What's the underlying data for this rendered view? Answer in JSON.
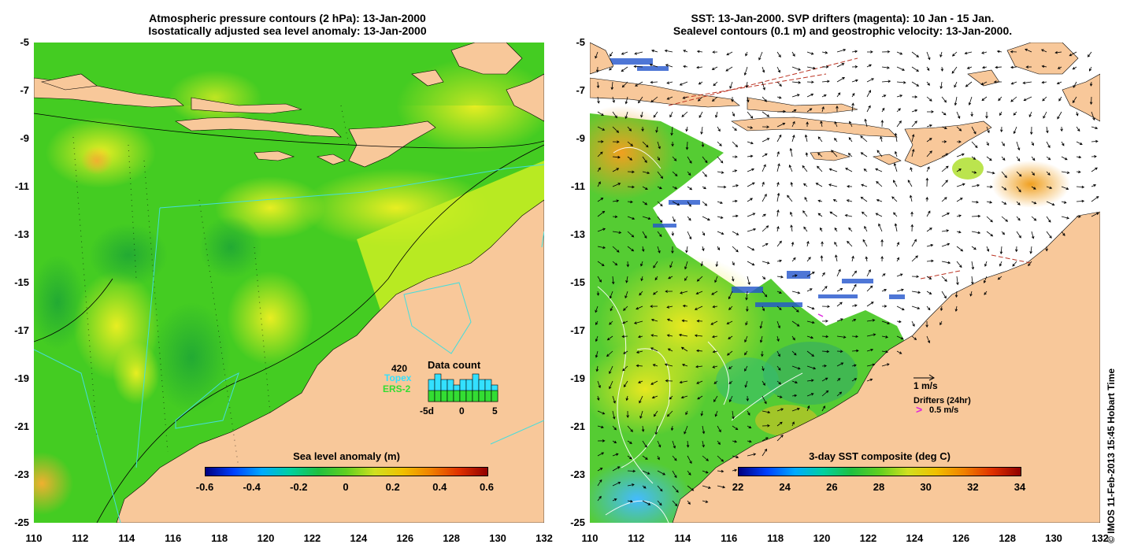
{
  "left_panel": {
    "title_line1": "Atmospheric pressure contours (2 hPa): 13-Jan-2000",
    "title_line2": "Isostatically adjusted sea level anomaly: 13-Jan-2000",
    "colorbar": {
      "title": "Sea level anomaly (m)",
      "ticks": [
        "-0.6",
        "-0.4",
        "-0.2",
        "0",
        "0.2",
        "0.4",
        "0.6"
      ]
    },
    "data_count": {
      "title": "Data count",
      "count": "420",
      "series_topex": "Topex",
      "series_ers2": "ERS-2",
      "axis_labels": [
        "-5d",
        "0",
        "5"
      ],
      "topex_color": "#33e0ff",
      "ers2_color": "#33dd33",
      "bars_total": [
        4,
        5,
        4,
        4,
        3,
        4,
        4,
        5,
        4,
        4,
        3
      ],
      "bars_ers2": [
        2,
        2,
        2,
        2,
        2,
        2,
        2,
        2,
        2,
        2,
        2
      ]
    }
  },
  "right_panel": {
    "title_line1": "SST: 13-Jan-2000. SVP drifters (magenta): 10 Jan - 15 Jan.",
    "title_line2": "Sealevel contours (0.1 m) and geostrophic velocity: 13-Jan-2000.",
    "colorbar": {
      "title": "3-day SST composite (deg C)",
      "ticks": [
        "22",
        "24",
        "26",
        "28",
        "30",
        "32",
        "34"
      ]
    },
    "velocity_legend": "1 m/s",
    "drifters_legend": "Drifters (24hr)",
    "drifters_speed": "0.5 m/s",
    "drifter_color": "#dd22dd"
  },
  "axes": {
    "x_ticks": [
      "110",
      "112",
      "114",
      "116",
      "118",
      "120",
      "122",
      "124",
      "126",
      "128",
      "130",
      "132"
    ],
    "y_ticks": [
      "-5",
      "-7",
      "-9",
      "-11",
      "-13",
      "-15",
      "-17",
      "-19",
      "-21",
      "-23",
      "-25"
    ],
    "lon_range": [
      110,
      132
    ],
    "lat_range": [
      -25,
      -5
    ]
  },
  "colors": {
    "land": "#f8c89a",
    "sea_green": "#44cc22",
    "sea_yellow": "#ccee22",
    "topex_track": "#44dddd"
  },
  "copyright": "© IMOS 11-Feb-2013 15:45 Hobart Time"
}
